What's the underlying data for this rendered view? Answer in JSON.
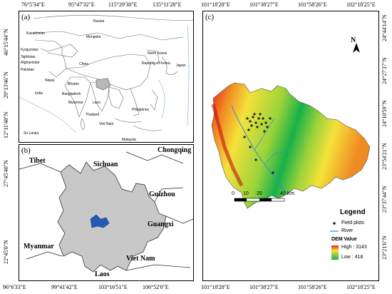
{
  "panel_a": {
    "tag": "(a)",
    "top_ticks": [
      "76°5'34\"E",
      "95°47'32\"E",
      "115°29'30\"E",
      "135°11'28\"E"
    ],
    "left_ticks": [
      "46°15'44\"N",
      "29°13'46\"N",
      "12°11'48\"N"
    ],
    "countries": [
      "Russia",
      "Mongolia",
      "Kazakhstan",
      "Kyrgyzstan",
      "Tajikistan",
      "Afghanistan",
      "Pakistan",
      "China",
      "North Korea",
      "Republic of Korea",
      "Japan",
      "Nepal",
      "Bhutan",
      "India",
      "Bangladesh",
      "Myanmar",
      "Laos",
      "Thailand",
      "Viet Nam",
      "Philippines",
      "Sri Lanka",
      "Malaysia"
    ]
  },
  "panel_b": {
    "tag": "(b)",
    "bottom_ticks": [
      "96°6'33\"E",
      "99°41'42\"E",
      "103°16'51\"E",
      "106°52'0\"E"
    ],
    "left_ticks": [
      "27°45'40\"N",
      "22°45'0\"N"
    ],
    "regions": [
      "Tibet",
      "Sichuan",
      "Chongqing",
      "Guizhou",
      "Guangxi",
      "Myanmar",
      "Viet Nam",
      "Laos"
    ]
  },
  "panel_c": {
    "tag": "(c)",
    "top_ticks": [
      "101°18'28\"E",
      "101°38'27\"E",
      "101°58'26\"E",
      "102°18'25\"E"
    ],
    "bottom_ticks": [
      "101°18'28\"E",
      "101°38'27\"E",
      "101°58'26\"E",
      "102°18'25\"E"
    ],
    "right_ticks": [
      "24°44'14\"N",
      "24°27'37\"N",
      "24°10'59\"N",
      "23°54'21\"N",
      "23°37'44\"N",
      "23°21'6\"N"
    ],
    "north": "N",
    "scale": [
      "0",
      "10",
      "20",
      "40 Km"
    ],
    "legend": {
      "title": "Legend",
      "field_plots": "Field plots",
      "river": "River",
      "dem_title": "DEM  Value",
      "high": "High : 3143",
      "low": "Low : 418"
    }
  },
  "colors": {
    "dem_high": "#e8201a",
    "dem_mid": "#f5e23a",
    "dem_low": "#18b04a",
    "yunnan": "#c8c8c8",
    "study_area": "#2458b5",
    "river": "#2b8fd8"
  }
}
